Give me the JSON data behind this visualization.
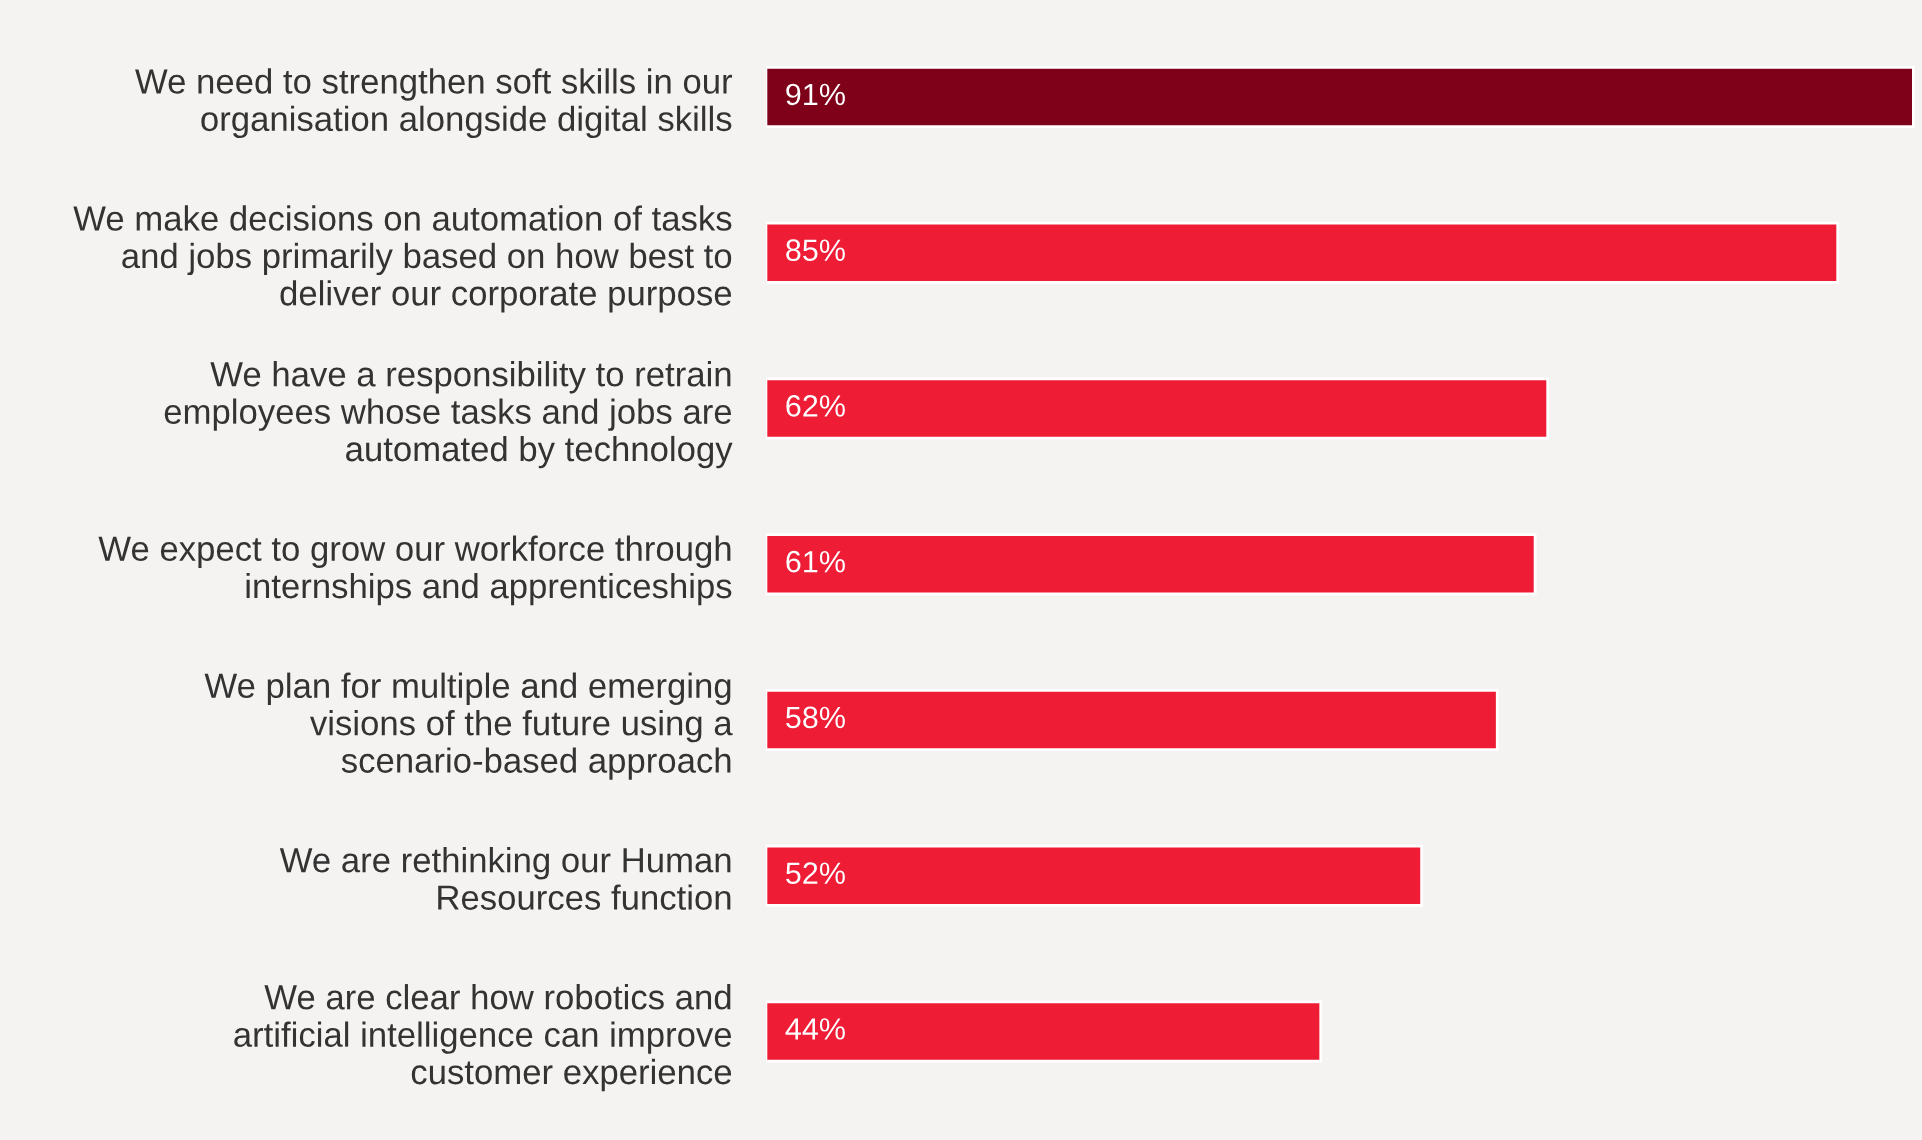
{
  "chart_data": {
    "type": "bar",
    "orientation": "horizontal",
    "categories": [
      "We need to strengthen soft skills in our\norganisation alongside digital skills",
      "We make decisions on automation of tasks\nand jobs primarily based on how best to\ndeliver our corporate purpose",
      "We have a responsibility to retrain\nemployees whose tasks and jobs are\nautomated by technology",
      "We expect to grow our workforce through\ninternships and apprenticeships",
      "We plan for multiple and emerging\nvisions of the future using a\nscenario-based approach",
      "We are rethinking our Human\nResources function",
      "We are clear how robotics and\nartificial intelligence can improve\ncustomer experience"
    ],
    "values": [
      91,
      85,
      62,
      61,
      58,
      52,
      44
    ],
    "value_labels": [
      "91%",
      "85%",
      "62%",
      "61%",
      "58%",
      "52%",
      "44%"
    ],
    "colors": [
      "#7f0019",
      "#ee1c35",
      "#ee1c35",
      "#ee1c35",
      "#ee1c35",
      "#ee1c35",
      "#ee1c35"
    ],
    "grid": false,
    "legend": false
  }
}
